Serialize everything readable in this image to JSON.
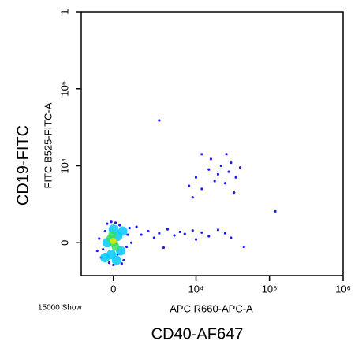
{
  "chart_data": {
    "type": "scatter",
    "y_title": "CD19-FITC",
    "ylabel": "FITC B525-FITC-A",
    "xlabel": "APC R660-APC-A",
    "x_title": "CD40-AF647",
    "note": "15000 Show",
    "xscale": "biexponential",
    "yscale": "biexponential",
    "xlim": [
      -1800,
      1000000
    ],
    "ylim": [
      -700,
      100000000
    ],
    "xticks": [
      0,
      {
        "value": 10000,
        "label": "10⁴"
      },
      {
        "value": 100000,
        "label": "10⁵"
      },
      {
        "value": 1000000,
        "label": "10⁶"
      }
    ],
    "yticks": [
      0,
      {
        "value": 10000,
        "label": "10⁴"
      },
      {
        "value": 1000000,
        "label": "10⁶"
      },
      {
        "value": 100000000,
        "label": "1"
      }
    ],
    "series": [
      {
        "color": "#1a1aff",
        "x": [
          -600,
          -400,
          -700,
          500,
          700,
          300,
          -200,
          200,
          650,
          -500,
          100,
          -300,
          800,
          -800,
          400,
          0,
          -100,
          900,
          1500,
          2000,
          2500,
          3000,
          4000,
          5000,
          6000,
          7000,
          9000,
          12000,
          15000,
          20000,
          25000,
          30000,
          45000,
          1200,
          3500,
          10000,
          8000,
          10000,
          12000,
          15000,
          18000,
          20000,
          22000,
          25000,
          28000,
          30000,
          35000,
          40000,
          16000,
          12000,
          9000,
          26000,
          33000,
          3000,
          120000
        ],
        "values": [
          -200,
          150,
          50,
          -250,
          100,
          250,
          -300,
          -150,
          -50,
          -80,
          300,
          280,
          200,
          -100,
          -320,
          -350,
          320,
          0,
          100,
          150,
          60,
          120,
          180,
          90,
          140,
          110,
          160,
          130,
          80,
          170,
          120,
          60,
          -50,
          220,
          -60,
          40,
          3000,
          5000,
          2500,
          8000,
          4000,
          6000,
          10000,
          3500,
          7000,
          12000,
          5000,
          9000,
          15000,
          20000,
          1500,
          20000,
          2000,
          150000,
          640
        ]
      },
      {
        "color": "#00c8ff",
        "x": [
          -300,
          200,
          -100,
          350,
          0,
          -400,
          450,
          150
        ],
        "values": [
          0,
          80,
          -150,
          -100,
          180,
          -200,
          150,
          -250
        ]
      },
      {
        "color": "#30e060",
        "x": [
          -150,
          100,
          0,
          -50
        ],
        "values": [
          50,
          -50,
          0,
          100
        ]
      },
      {
        "color": "#e8e800",
        "x": [
          0
        ],
        "values": [
          20
        ]
      }
    ]
  }
}
